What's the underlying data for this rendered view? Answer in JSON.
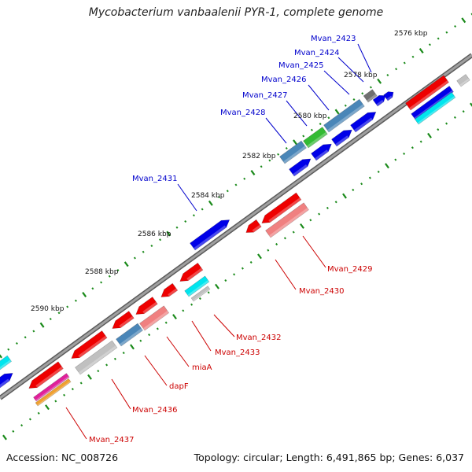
{
  "title": "Mycobacterium vanbaalenii PYR-1, complete genome",
  "footer": {
    "accession": "Accession: NC_008726",
    "topology": "Topology: circular; Length: 6,491,865 bp; Genes: 6,037"
  },
  "colors": {
    "forward": "#0000e8",
    "reverse": "#ee0000",
    "steel": "#4a86b8",
    "grey": "#707070",
    "light_grey": "#c0c0c0",
    "pink": "#f08080",
    "green": "#33bb33",
    "cyan": "#00e5ee",
    "magenta": "#e0209a",
    "orange": "#f0a030",
    "backbone": "#888888",
    "tick_dot": "#1a8a1a",
    "label_forward": "#0000cc",
    "label_reverse": "#cc0000"
  },
  "ticks": [
    "2576 kbp",
    "2578 kbp",
    "2580 kbp",
    "2582 kbp",
    "2584 kbp",
    "2586 kbp",
    "2588 kbp",
    "2590 kbp"
  ],
  "labels_forward": [
    "Mvan_2423",
    "Mvan_2424",
    "Mvan_2425",
    "Mvan_2426",
    "Mvan_2427",
    "Mvan_2428",
    "Mvan_2431"
  ],
  "labels_reverse": [
    "Mvan_2429",
    "Mvan_2430",
    "Mvan_2432",
    "Mvan_2433",
    "miaA",
    "dapF",
    "Mvan_2436",
    "Mvan_2437"
  ]
}
